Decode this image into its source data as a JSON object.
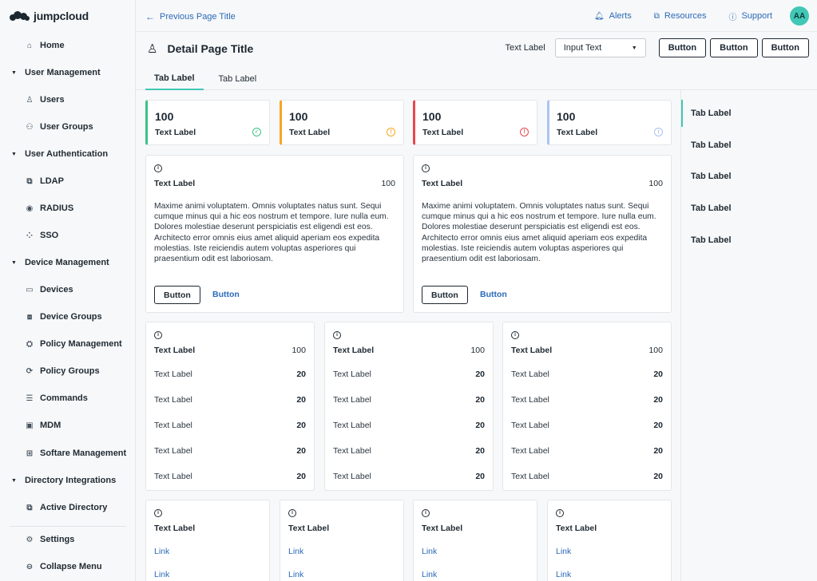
{
  "brand": {
    "name": "jumpcloud"
  },
  "sidebar": {
    "items": [
      {
        "label": "Home",
        "icon": "home-icon",
        "glyph": "⌂"
      },
      {
        "label": "User Management",
        "section": true
      },
      {
        "label": "Users",
        "icon": "user-icon",
        "glyph": "♙"
      },
      {
        "label": "User Groups",
        "icon": "user-groups-icon",
        "glyph": "⚇"
      },
      {
        "label": "User Authentication",
        "section": true
      },
      {
        "label": "LDAP",
        "icon": "ldap-icon",
        "glyph": "⧉"
      },
      {
        "label": "RADIUS",
        "icon": "radius-icon",
        "glyph": "◉"
      },
      {
        "label": "SSO",
        "icon": "sso-icon",
        "glyph": "⁘"
      },
      {
        "label": "Device Management",
        "section": true
      },
      {
        "label": "Devices",
        "icon": "devices-icon",
        "glyph": "▭"
      },
      {
        "label": "Device Groups",
        "icon": "device-groups-icon",
        "glyph": "⧈"
      },
      {
        "label": "Policy Management",
        "icon": "policy-management-icon",
        "glyph": "⛭"
      },
      {
        "label": "Policy Groups",
        "icon": "policy-groups-icon",
        "glyph": "⟳"
      },
      {
        "label": "Commands",
        "icon": "commands-icon",
        "glyph": "☰"
      },
      {
        "label": "MDM",
        "icon": "mdm-icon",
        "glyph": "▣"
      },
      {
        "label": "Softare Management",
        "icon": "software-management-icon",
        "glyph": "⊞"
      },
      {
        "label": "Directory Integrations",
        "section": true
      },
      {
        "label": "Active Directory",
        "icon": "active-directory-icon",
        "glyph": "⧉"
      }
    ],
    "settings_label": "Settings",
    "collapse_label": "Collapse Menu"
  },
  "topbar": {
    "back_label": "Previous Page Title",
    "alerts_label": "Alerts",
    "resources_label": "Resources",
    "support_label": "Support",
    "avatar_initials": "AA"
  },
  "header": {
    "title": "Detail Page Title",
    "text_label": "Text Label",
    "select_value": "Input Text",
    "buttons": [
      "Button",
      "Button",
      "Button"
    ],
    "tabs": [
      "Tab Label",
      "Tab Label"
    ]
  },
  "right_tabs": [
    "Tab Label",
    "Tab Label",
    "Tab Label",
    "Tab Label",
    "Tab Label"
  ],
  "colors": {
    "accent": "#41c7b6",
    "success": "#3cc287",
    "warning": "#f5a623",
    "error": "#e5484d",
    "info": "#a9c4ef",
    "link": "#2b6ab8"
  },
  "stats": [
    {
      "value": "100",
      "label": "Text Label",
      "status": "success",
      "color": "#3cc287",
      "glyph": "✓"
    },
    {
      "value": "100",
      "label": "Text Label",
      "status": "warning",
      "color": "#f5a623",
      "glyph": "!"
    },
    {
      "value": "100",
      "label": "Text Label",
      "status": "error",
      "color": "#e5484d",
      "glyph": "!"
    },
    {
      "value": "100",
      "label": "Text Label",
      "status": "info",
      "color": "#a9c4ef",
      "glyph": "i"
    }
  ],
  "detail_cards": [
    {
      "label": "Text Label",
      "value": "100",
      "body": "Maxime animi voluptatem. Omnis voluptates natus sunt. Sequi cumque minus qui a hic eos nostrum et tempore. Iure nulla eum. Dolores molestiae deserunt perspiciatis est eligendi est eos. Architecto error omnis eius amet aliquid aperiam eos expedita molestias. Iste reiciendis autem voluptas asperiores qui praesentium odit est laboriosam.",
      "button_label": "Button",
      "link_label": "Button"
    },
    {
      "label": "Text Label",
      "value": "100",
      "body": "Maxime animi voluptatem. Omnis voluptates natus sunt. Sequi cumque minus qui a hic eos nostrum et tempore. Iure nulla eum. Dolores molestiae deserunt perspiciatis est eligendi est eos. Architecto error omnis eius amet aliquid aperiam eos expedita molestias. Iste reiciendis autem voluptas asperiores qui praesentium odit est laboriosam.",
      "button_label": "Button",
      "link_label": "Button"
    }
  ],
  "list_cards": [
    {
      "label": "Text Label",
      "value": "100",
      "rows": [
        {
          "label": "Text Label",
          "value": "20"
        },
        {
          "label": "Text Label",
          "value": "20"
        },
        {
          "label": "Text Label",
          "value": "20"
        },
        {
          "label": "Text Label",
          "value": "20"
        },
        {
          "label": "Text Label",
          "value": "20"
        }
      ]
    },
    {
      "label": "Text Label",
      "value": "100",
      "rows": [
        {
          "label": "Text Label",
          "value": "20"
        },
        {
          "label": "Text Label",
          "value": "20"
        },
        {
          "label": "Text Label",
          "value": "20"
        },
        {
          "label": "Text Label",
          "value": "20"
        },
        {
          "label": "Text Label",
          "value": "20"
        }
      ]
    },
    {
      "label": "Text Label",
      "value": "100",
      "rows": [
        {
          "label": "Text Label",
          "value": "20"
        },
        {
          "label": "Text Label",
          "value": "20"
        },
        {
          "label": "Text Label",
          "value": "20"
        },
        {
          "label": "Text Label",
          "value": "20"
        },
        {
          "label": "Text Label",
          "value": "20"
        }
      ]
    }
  ],
  "link_cards": [
    {
      "label": "Text Label",
      "links": [
        "Link",
        "Link"
      ]
    },
    {
      "label": "Text Label",
      "links": [
        "Link",
        "Link"
      ]
    },
    {
      "label": "Text Label",
      "links": [
        "Link",
        "Link"
      ]
    },
    {
      "label": "Text Label",
      "links": [
        "Link",
        "Link"
      ]
    }
  ]
}
